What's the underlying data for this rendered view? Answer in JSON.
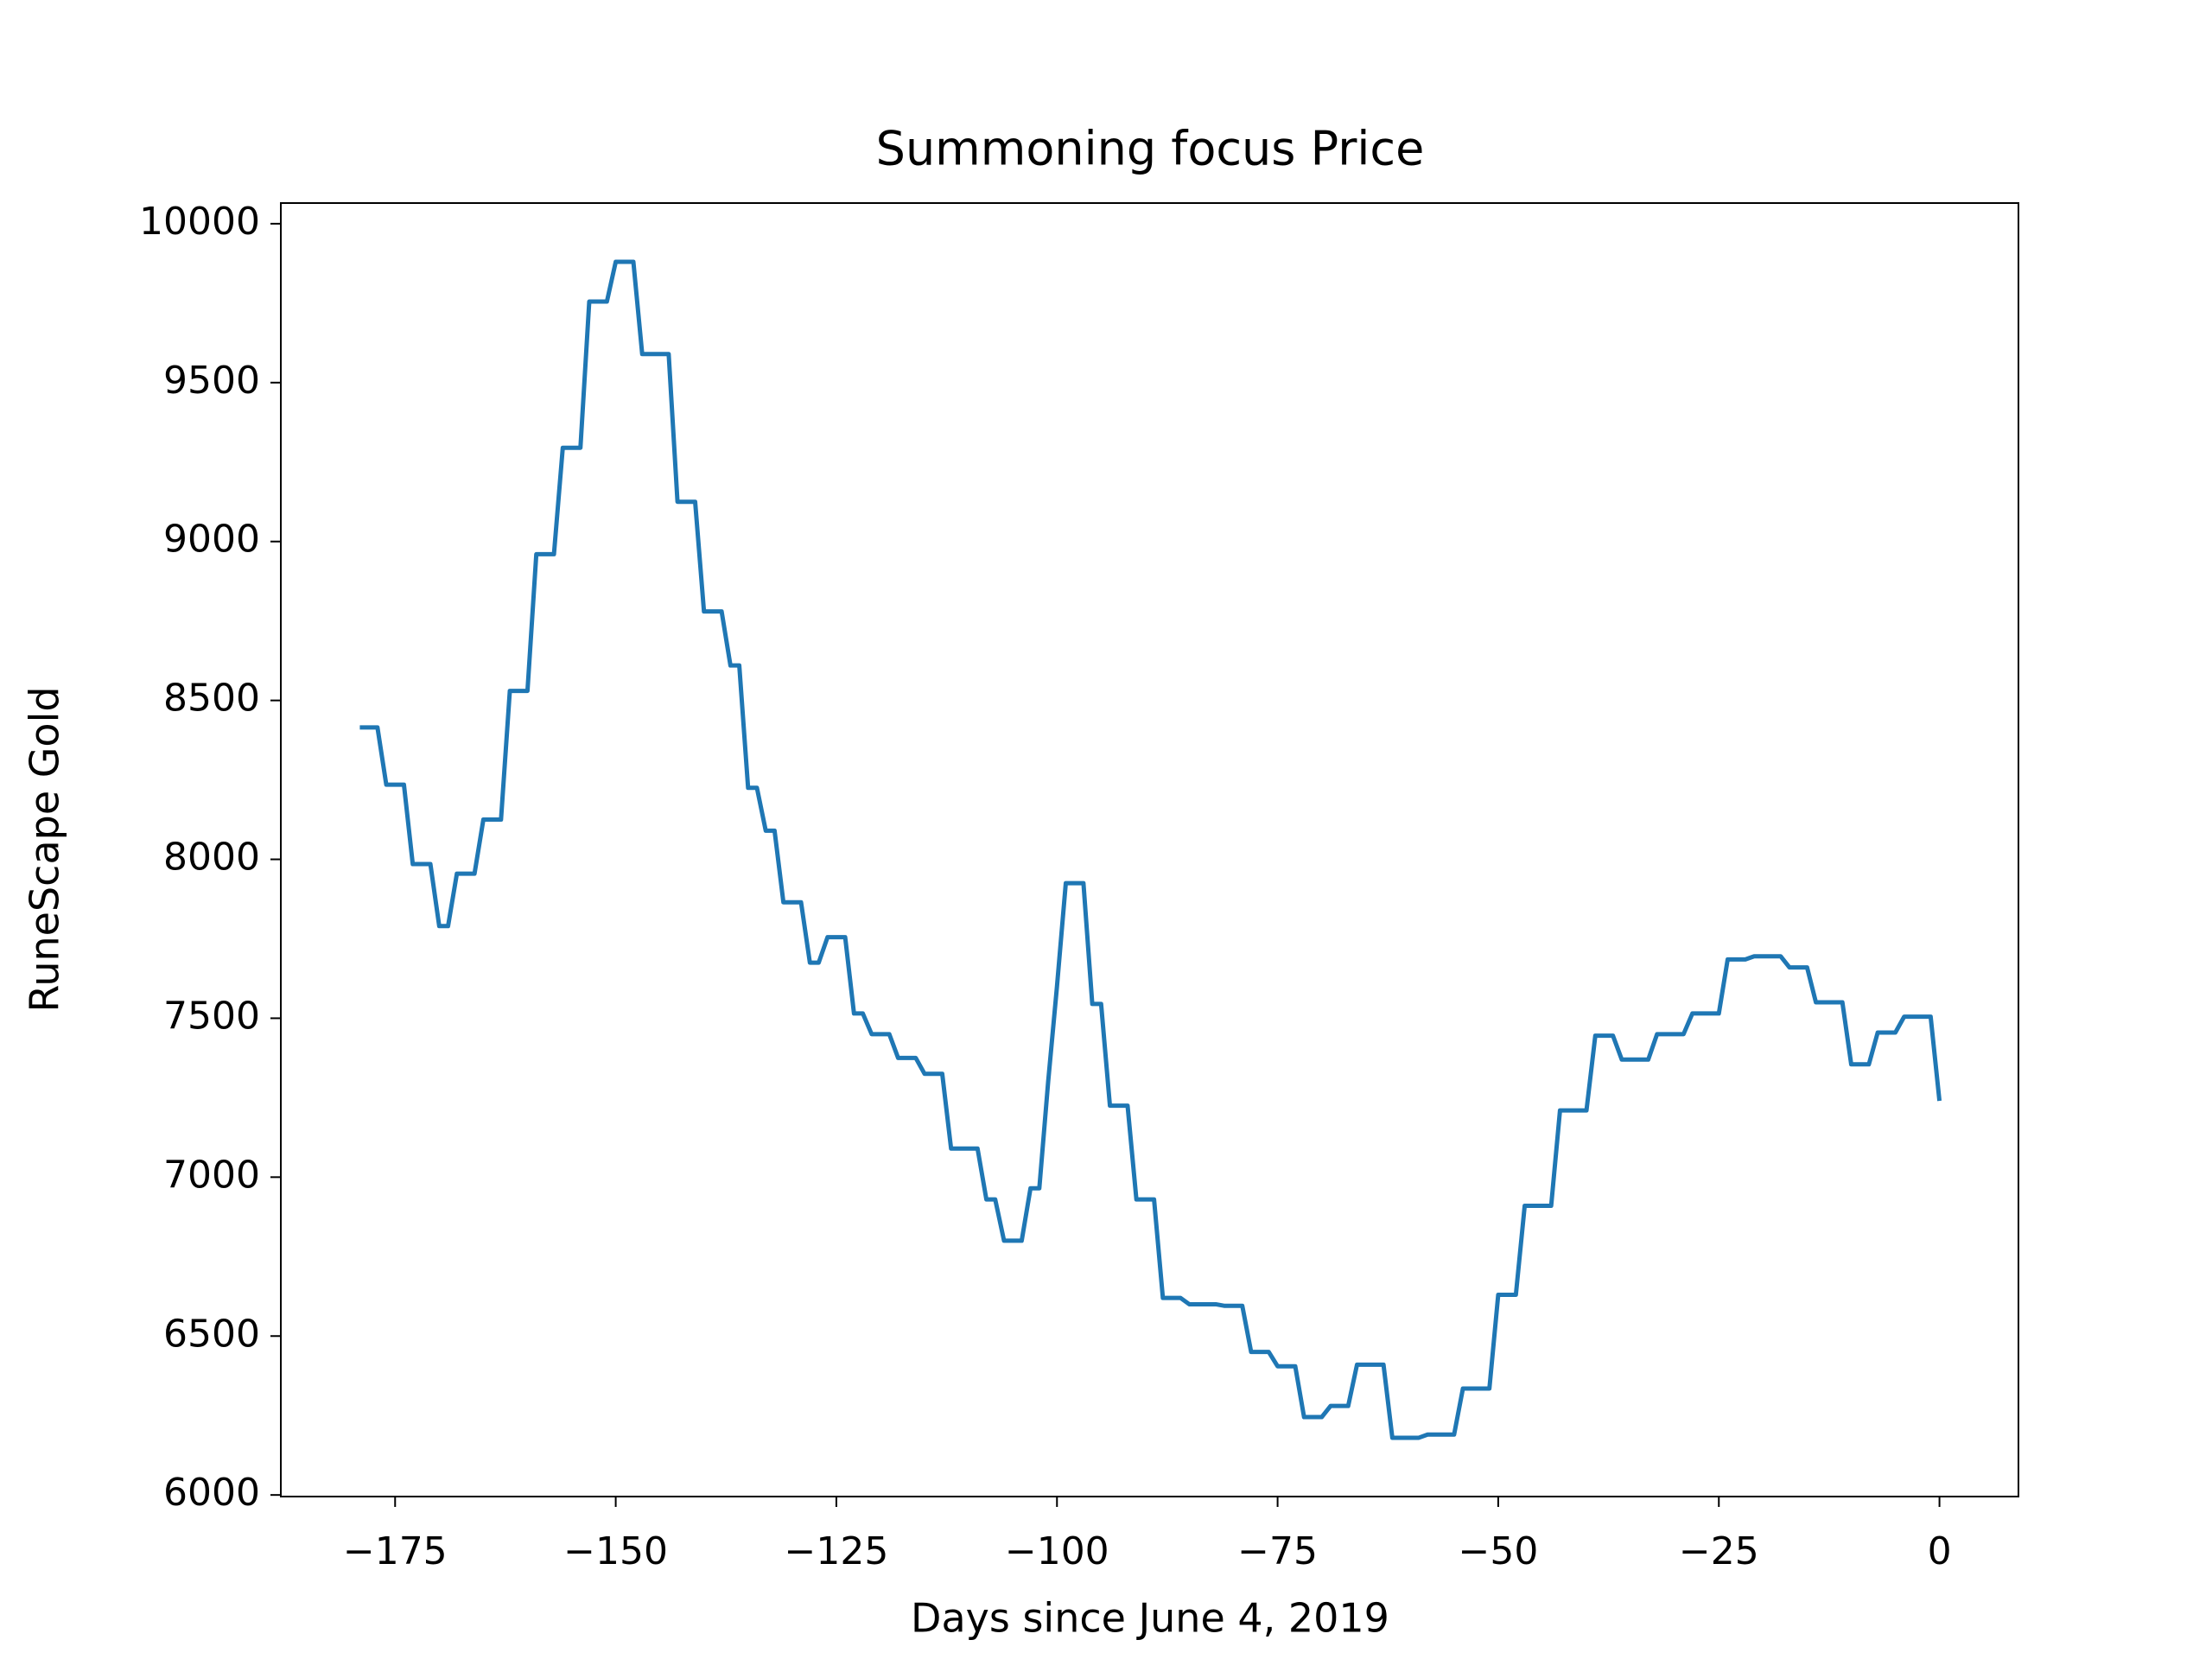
{
  "chart_data": {
    "type": "line",
    "title": "Summoning focus Price",
    "xlabel": "Days since June 4, 2019",
    "ylabel": "RuneScape Gold",
    "x": [
      -179,
      -178,
      -177,
      -176,
      -175,
      -174,
      -173,
      -172,
      -171,
      -170,
      -169,
      -168,
      -167,
      -166,
      -165,
      -164,
      -163,
      -162,
      -161,
      -160,
      -159,
      -158,
      -157,
      -156,
      -155,
      -154,
      -153,
      -152,
      -151,
      -150,
      -149,
      -148,
      -147,
      -146,
      -145,
      -144,
      -143,
      -142,
      -141,
      -140,
      -139,
      -138,
      -137,
      -136,
      -135,
      -134,
      -133,
      -132,
      -131,
      -130,
      -129,
      -128,
      -127,
      -126,
      -125,
      -124,
      -123,
      -122,
      -121,
      -120,
      -119,
      -118,
      -117,
      -116,
      -115,
      -114,
      -113,
      -112,
      -111,
      -110,
      -109,
      -108,
      -107,
      -106,
      -105,
      -104,
      -103,
      -102,
      -101,
      -100,
      -99,
      -98,
      -97,
      -96,
      -95,
      -94,
      -93,
      -92,
      -91,
      -90,
      -89,
      -88,
      -87,
      -86,
      -85,
      -84,
      -83,
      -82,
      -81,
      -80,
      -79,
      -78,
      -77,
      -76,
      -75,
      -74,
      -73,
      -72,
      -71,
      -70,
      -69,
      -68,
      -67,
      -66,
      -65,
      -64,
      -63,
      -62,
      -61,
      -60,
      -59,
      -58,
      -57,
      -56,
      -55,
      -54,
      -53,
      -52,
      -51,
      -50,
      -49,
      -48,
      -47,
      -46,
      -45,
      -44,
      -43,
      -42,
      -41,
      -40,
      -39,
      -38,
      -37,
      -36,
      -35,
      -34,
      -33,
      -32,
      -31,
      -30,
      -29,
      -28,
      -27,
      -26,
      -25,
      -24,
      -23,
      -22,
      -21,
      -20,
      -19,
      -18,
      -17,
      -16,
      -15,
      -14,
      -13,
      -12,
      -11,
      -10,
      -9,
      -8,
      -7,
      -6,
      -5,
      -4,
      -3,
      -2,
      -1,
      0
    ],
    "series": [
      {
        "color": "#1f77b4",
        "values": [
          8415,
          8415,
          8415,
          8235,
          8235,
          8235,
          7985,
          7985,
          7985,
          7790,
          7790,
          7955,
          7955,
          7955,
          8125,
          8125,
          8125,
          8530,
          8530,
          8530,
          8960,
          8960,
          8960,
          9295,
          9295,
          9295,
          9755,
          9755,
          9755,
          9880,
          9880,
          9880,
          9590,
          9590,
          9590,
          9590,
          9125,
          9125,
          9125,
          8780,
          8780,
          8780,
          8610,
          8610,
          8225,
          8225,
          8090,
          8090,
          7865,
          7865,
          7865,
          7675,
          7675,
          7755,
          7755,
          7755,
          7515,
          7515,
          7450,
          7450,
          7450,
          7375,
          7375,
          7375,
          7325,
          7325,
          7325,
          7090,
          7090,
          7090,
          7090,
          6930,
          6930,
          6800,
          6800,
          6800,
          6965,
          6965,
          7300,
          7600,
          7925,
          7925,
          7925,
          7545,
          7545,
          7225,
          7225,
          7225,
          6930,
          6930,
          6930,
          6620,
          6620,
          6620,
          6600,
          6600,
          6600,
          6600,
          6595,
          6595,
          6595,
          6450,
          6450,
          6450,
          6405,
          6405,
          6405,
          6245,
          6245,
          6245,
          6280,
          6280,
          6280,
          6410,
          6410,
          6410,
          6410,
          6180,
          6180,
          6180,
          6180,
          6190,
          6190,
          6190,
          6190,
          6335,
          6335,
          6335,
          6335,
          6630,
          6630,
          6630,
          6910,
          6910,
          6910,
          6910,
          7210,
          7210,
          7210,
          7210,
          7445,
          7445,
          7445,
          7370,
          7370,
          7370,
          7370,
          7450,
          7450,
          7450,
          7450,
          7515,
          7515,
          7515,
          7515,
          7685,
          7685,
          7685,
          7695,
          7695,
          7695,
          7695,
          7660,
          7660,
          7660,
          7550,
          7550,
          7550,
          7550,
          7355,
          7355,
          7355,
          7455,
          7455,
          7455,
          7505,
          7505,
          7505,
          7505,
          7240
        ]
      }
    ],
    "xlim": [
      -187.95,
      8.95
    ],
    "ylim": [
      5995,
      10065
    ],
    "xticks": [
      {
        "value": -175,
        "label": "−175"
      },
      {
        "value": -150,
        "label": "−150"
      },
      {
        "value": -125,
        "label": "−125"
      },
      {
        "value": -100,
        "label": "−100"
      },
      {
        "value": -75,
        "label": "−75"
      },
      {
        "value": -50,
        "label": "−50"
      },
      {
        "value": -25,
        "label": "−25"
      },
      0
    ],
    "yticks": [
      6000,
      6500,
      7000,
      7500,
      8000,
      8500,
      9000,
      9500,
      10000
    ],
    "grid": false
  }
}
